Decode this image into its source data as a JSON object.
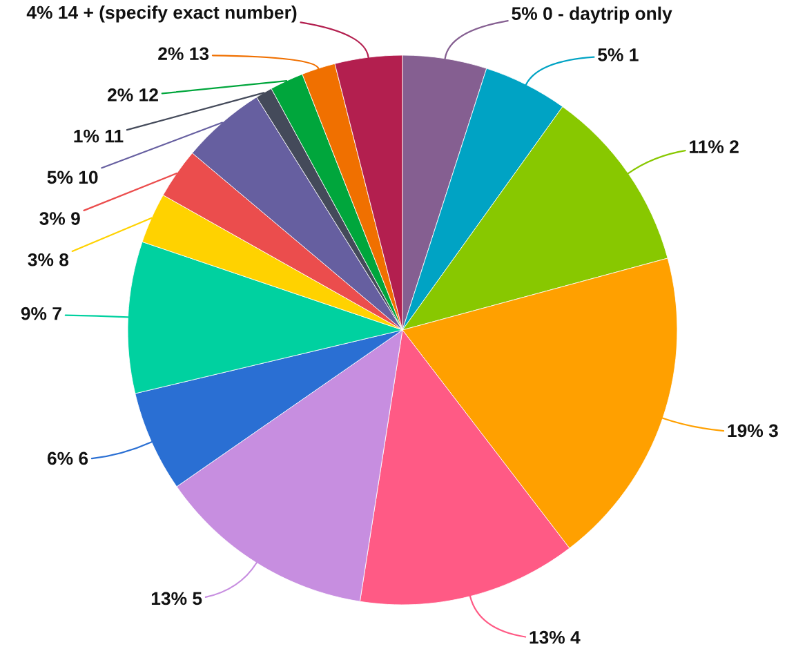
{
  "chart_data": {
    "type": "pie",
    "categories": [
      "0 - daytrip only",
      "1",
      "2",
      "3",
      "4",
      "5",
      "6",
      "7",
      "8",
      "9",
      "10",
      "11",
      "12",
      "13",
      "14 + (specify exact number)"
    ],
    "values": [
      5,
      5,
      11,
      19,
      13,
      13,
      6,
      9,
      3,
      3,
      5,
      1,
      2,
      2,
      4
    ],
    "value_labels": [
      "5%",
      "5%",
      "11%",
      "19%",
      "13%",
      "13%",
      "6%",
      "9%",
      "3%",
      "3%",
      "5%",
      "1%",
      "2%",
      "2%",
      "4%"
    ],
    "colors": [
      "#855f91",
      "#00a3c4",
      "#88c800",
      "#ffa000",
      "#ff5a85",
      "#c78ee0",
      "#2a6fd3",
      "#00d1a0",
      "#ffd200",
      "#eb4d4d",
      "#665fa0",
      "#444a5a",
      "#00a63c",
      "#f07000",
      "#b31f4f"
    ]
  }
}
